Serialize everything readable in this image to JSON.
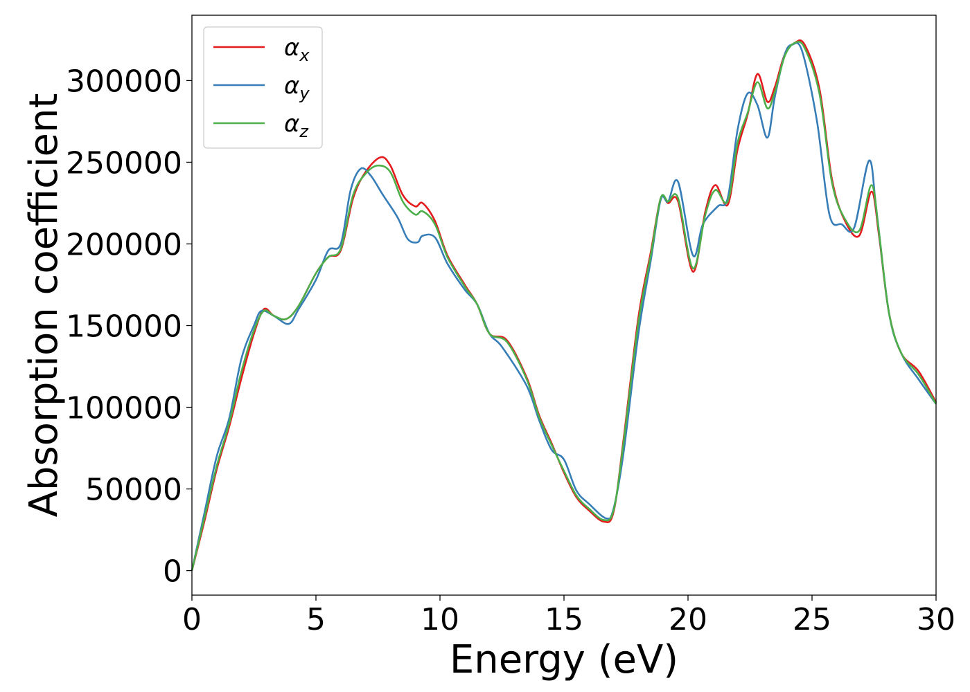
{
  "chart_data": {
    "type": "line",
    "title": "",
    "xlabel": "Energy (eV)",
    "ylabel": "Absorption coefficient",
    "xlim": [
      0,
      30
    ],
    "ylim": [
      -15000,
      340000
    ],
    "xticks": [
      0,
      5,
      10,
      15,
      20,
      25,
      30
    ],
    "yticks": [
      0,
      50000,
      100000,
      150000,
      200000,
      250000,
      300000
    ],
    "grid": false,
    "legend_position": "top-left",
    "series": [
      {
        "name": "α_x",
        "symbol": "α",
        "subscript": "x",
        "color": "#e41a1c",
        "points": [
          [
            0,
            0
          ],
          [
            0.5,
            30000
          ],
          [
            1,
            62000
          ],
          [
            1.5,
            88000
          ],
          [
            2,
            118000
          ],
          [
            2.5,
            145000
          ],
          [
            2.9,
            160000
          ],
          [
            3.3,
            156000
          ],
          [
            3.8,
            154000
          ],
          [
            4.3,
            162000
          ],
          [
            5,
            182000
          ],
          [
            5.5,
            192000
          ],
          [
            6,
            196000
          ],
          [
            6.5,
            228000
          ],
          [
            7,
            244000
          ],
          [
            7.6,
            253000
          ],
          [
            8,
            248000
          ],
          [
            8.5,
            230000
          ],
          [
            9,
            223000
          ],
          [
            9.3,
            225000
          ],
          [
            9.8,
            214000
          ],
          [
            10.3,
            193000
          ],
          [
            11,
            175000
          ],
          [
            11.5,
            163000
          ],
          [
            12,
            145000
          ],
          [
            12.7,
            141000
          ],
          [
            13.5,
            118000
          ],
          [
            14,
            95000
          ],
          [
            14.5,
            78000
          ],
          [
            15,
            60000
          ],
          [
            15.5,
            45000
          ],
          [
            16,
            37000
          ],
          [
            16.6,
            30000
          ],
          [
            17,
            36000
          ],
          [
            17.4,
            80000
          ],
          [
            18,
            155000
          ],
          [
            18.5,
            195000
          ],
          [
            18.9,
            228000
          ],
          [
            19.2,
            225000
          ],
          [
            19.6,
            226000
          ],
          [
            20.2,
            183000
          ],
          [
            20.7,
            220000
          ],
          [
            21.1,
            236000
          ],
          [
            21.6,
            224000
          ],
          [
            22,
            258000
          ],
          [
            22.4,
            279000
          ],
          [
            22.8,
            304000
          ],
          [
            23.2,
            287000
          ],
          [
            23.5,
            296000
          ],
          [
            23.9,
            316000
          ],
          [
            24.3,
            323000
          ],
          [
            24.7,
            322000
          ],
          [
            25.3,
            295000
          ],
          [
            25.8,
            240000
          ],
          [
            26.3,
            215000
          ],
          [
            26.9,
            205000
          ],
          [
            27.4,
            232000
          ],
          [
            27.7,
            205000
          ],
          [
            28.1,
            158000
          ],
          [
            28.6,
            133000
          ],
          [
            29.3,
            122000
          ],
          [
            30,
            103000
          ]
        ]
      },
      {
        "name": "α_y",
        "symbol": "α",
        "subscript": "y",
        "color": "#377eb8",
        "points": [
          [
            0,
            0
          ],
          [
            0.5,
            35000
          ],
          [
            1,
            70000
          ],
          [
            1.5,
            93000
          ],
          [
            2,
            130000
          ],
          [
            2.5,
            150000
          ],
          [
            2.8,
            159000
          ],
          [
            3.3,
            156000
          ],
          [
            3.9,
            151000
          ],
          [
            4.3,
            160000
          ],
          [
            5,
            178000
          ],
          [
            5.5,
            196000
          ],
          [
            6,
            200000
          ],
          [
            6.4,
            233000
          ],
          [
            6.8,
            246000
          ],
          [
            7.2,
            242000
          ],
          [
            7.7,
            230000
          ],
          [
            8.3,
            216000
          ],
          [
            8.7,
            203000
          ],
          [
            9.1,
            201000
          ],
          [
            9.3,
            205000
          ],
          [
            9.8,
            204000
          ],
          [
            10.3,
            188000
          ],
          [
            11,
            172000
          ],
          [
            11.5,
            163000
          ],
          [
            12,
            145000
          ],
          [
            12.5,
            137000
          ],
          [
            13.5,
            113000
          ],
          [
            14,
            92000
          ],
          [
            14.5,
            74000
          ],
          [
            15,
            68000
          ],
          [
            15.5,
            49000
          ],
          [
            16,
            41000
          ],
          [
            16.7,
            32000
          ],
          [
            17,
            38000
          ],
          [
            17.4,
            72000
          ],
          [
            18,
            145000
          ],
          [
            18.5,
            190000
          ],
          [
            18.9,
            227000
          ],
          [
            19.2,
            226000
          ],
          [
            19.6,
            238000
          ],
          [
            20.2,
            193000
          ],
          [
            20.6,
            212000
          ],
          [
            21.2,
            223000
          ],
          [
            21.6,
            228000
          ],
          [
            22,
            270000
          ],
          [
            22.4,
            292000
          ],
          [
            22.8,
            285000
          ],
          [
            23.2,
            265000
          ],
          [
            23.5,
            290000
          ],
          [
            23.9,
            316000
          ],
          [
            24.2,
            322000
          ],
          [
            24.6,
            318000
          ],
          [
            25.2,
            275000
          ],
          [
            25.7,
            218000
          ],
          [
            26.2,
            212000
          ],
          [
            26.7,
            210000
          ],
          [
            27.3,
            251000
          ],
          [
            27.6,
            220000
          ],
          [
            28.1,
            158000
          ],
          [
            28.6,
            133000
          ],
          [
            29.3,
            117000
          ],
          [
            30,
            102000
          ]
        ]
      },
      {
        "name": "α_z",
        "symbol": "α",
        "subscript": "z",
        "color": "#4daf4a",
        "points": [
          [
            0,
            0
          ],
          [
            0.5,
            32000
          ],
          [
            1,
            64000
          ],
          [
            1.5,
            90000
          ],
          [
            2,
            122000
          ],
          [
            2.5,
            147000
          ],
          [
            2.9,
            159000
          ],
          [
            3.3,
            156000
          ],
          [
            3.8,
            154000
          ],
          [
            4.3,
            162000
          ],
          [
            5,
            182000
          ],
          [
            5.5,
            192000
          ],
          [
            6,
            197000
          ],
          [
            6.5,
            230000
          ],
          [
            7,
            243000
          ],
          [
            7.5,
            248000
          ],
          [
            8,
            244000
          ],
          [
            8.5,
            226000
          ],
          [
            9,
            218000
          ],
          [
            9.3,
            220000
          ],
          [
            9.8,
            212000
          ],
          [
            10.3,
            192000
          ],
          [
            11,
            174000
          ],
          [
            11.5,
            163000
          ],
          [
            12,
            145000
          ],
          [
            12.7,
            140000
          ],
          [
            13.5,
            117000
          ],
          [
            14,
            94000
          ],
          [
            14.5,
            77000
          ],
          [
            15,
            61000
          ],
          [
            15.5,
            46000
          ],
          [
            16,
            38000
          ],
          [
            16.6,
            31000
          ],
          [
            17,
            37000
          ],
          [
            17.4,
            78000
          ],
          [
            18,
            152000
          ],
          [
            18.5,
            193000
          ],
          [
            18.9,
            228000
          ],
          [
            19.2,
            226000
          ],
          [
            19.6,
            228000
          ],
          [
            20.2,
            185000
          ],
          [
            20.7,
            218000
          ],
          [
            21.1,
            233000
          ],
          [
            21.6,
            226000
          ],
          [
            22,
            262000
          ],
          [
            22.4,
            280000
          ],
          [
            22.8,
            299000
          ],
          [
            23.2,
            283000
          ],
          [
            23.5,
            293000
          ],
          [
            23.9,
            315000
          ],
          [
            24.3,
            323000
          ],
          [
            24.7,
            320000
          ],
          [
            25.3,
            292000
          ],
          [
            25.8,
            238000
          ],
          [
            26.3,
            216000
          ],
          [
            26.9,
            208000
          ],
          [
            27.4,
            236000
          ],
          [
            27.7,
            207000
          ],
          [
            28.1,
            158000
          ],
          [
            28.6,
            133000
          ],
          [
            29.3,
            120000
          ],
          [
            30,
            102000
          ]
        ]
      }
    ]
  }
}
